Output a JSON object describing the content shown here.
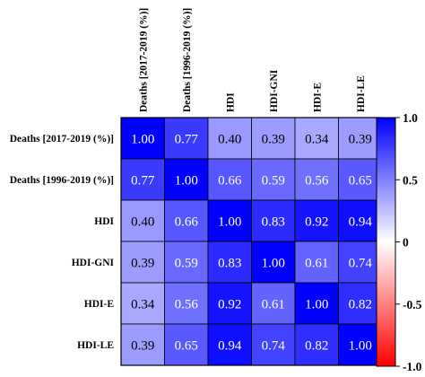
{
  "chart_data": {
    "type": "heatmap",
    "title": "",
    "xlabel": "",
    "ylabel": "",
    "rows": [
      "Deaths [2017-2019 (%)]",
      "Deaths [1996-2019 (%)]",
      "HDI",
      "HDI-GNI",
      "HDI-E",
      "HDI-LE"
    ],
    "columns": [
      "Deaths [2017-2019 (%)]",
      "Deaths [1996-2019 (%)]",
      "HDI",
      "HDI-GNI",
      "HDI-E",
      "HDI-LE"
    ],
    "values": [
      [
        1.0,
        0.77,
        0.4,
        0.39,
        0.34,
        0.39
      ],
      [
        0.77,
        1.0,
        0.66,
        0.59,
        0.56,
        0.65
      ],
      [
        0.4,
        0.66,
        1.0,
        0.83,
        0.92,
        0.94
      ],
      [
        0.39,
        0.59,
        0.83,
        1.0,
        0.61,
        0.74
      ],
      [
        0.34,
        0.56,
        0.92,
        0.61,
        1.0,
        0.82
      ],
      [
        0.39,
        0.65,
        0.94,
        0.74,
        0.82,
        1.0
      ]
    ],
    "value_labels": [
      [
        "1.00",
        "0.77",
        "0.40",
        "0.39",
        "0.34",
        "0.39"
      ],
      [
        "0.77",
        "1.00",
        "0.66",
        "0.59",
        "0.56",
        "0.65"
      ],
      [
        "0.40",
        "0.66",
        "1.00",
        "0.83",
        "0.92",
        "0.94"
      ],
      [
        "0.39",
        "0.59",
        "0.83",
        "1.00",
        "0.61",
        "0.74"
      ],
      [
        "0.34",
        "0.56",
        "0.92",
        "0.61",
        "1.00",
        "0.82"
      ],
      [
        "0.39",
        "0.65",
        "0.94",
        "0.74",
        "0.82",
        "1.00"
      ]
    ],
    "colorbar": {
      "min": -1.0,
      "max": 1.0,
      "ticks": [
        1.0,
        0.5,
        0,
        -0.5,
        -1.0
      ],
      "tick_labels": [
        "1.0",
        "0.5",
        "0",
        "-0.5",
        "-1.0"
      ],
      "colors": {
        "negative": "#ff0000",
        "zero": "#ffffff",
        "positive": "#0000ff"
      }
    },
    "legend_position": "right",
    "grid": false
  }
}
